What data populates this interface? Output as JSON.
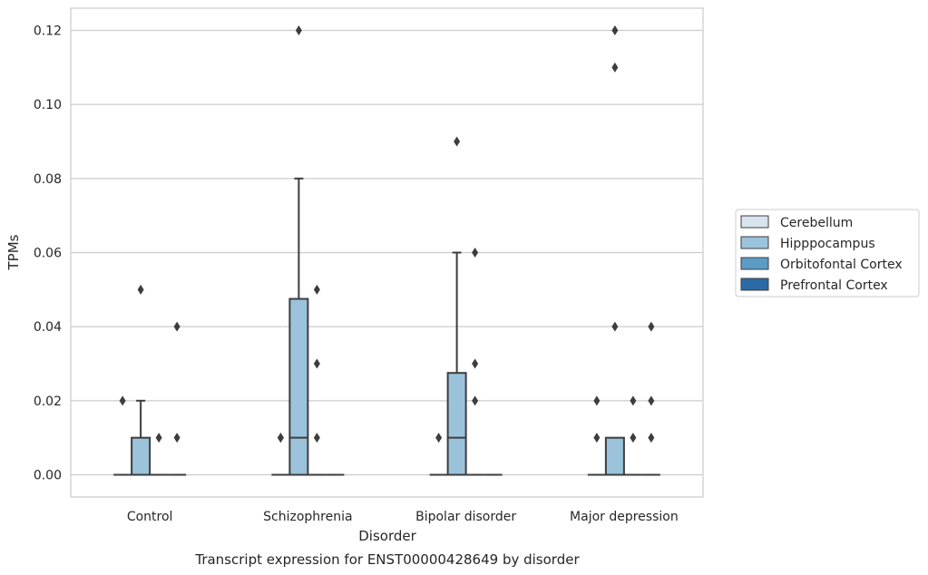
{
  "chart_data": {
    "type": "boxplot",
    "title": "",
    "caption": "Transcript expression for ENST00000428649 by disorder",
    "xlabel": "Disorder",
    "ylabel": "TPMs",
    "ylim": [
      -0.006,
      0.126
    ],
    "yticks": [
      0.0,
      0.02,
      0.04,
      0.06,
      0.08,
      0.1,
      0.12
    ],
    "ytick_labels": [
      "0.00",
      "0.02",
      "0.04",
      "0.06",
      "0.08",
      "0.10",
      "0.12"
    ],
    "grid": "horizontal",
    "legend_position": "right",
    "categories": [
      "Control",
      "Schizophrenia",
      "Bipolar disorder",
      "Major depression"
    ],
    "series": [
      {
        "name": "Cerebellum",
        "color": "#d8e3ee",
        "boxes": [
          {
            "q1": 0,
            "median": 0,
            "q3": 0,
            "whisker_low": 0,
            "whisker_high": 0,
            "outliers": [
              0.02
            ]
          },
          {
            "q1": 0,
            "median": 0,
            "q3": 0,
            "whisker_low": 0,
            "whisker_high": 0,
            "outliers": [
              0.01,
              0.01
            ]
          },
          {
            "q1": 0,
            "median": 0,
            "q3": 0,
            "whisker_low": 0,
            "whisker_high": 0,
            "outliers": [
              0.01
            ]
          },
          {
            "q1": 0,
            "median": 0,
            "q3": 0,
            "whisker_low": 0,
            "whisker_high": 0,
            "outliers": [
              0.02,
              0.01
            ]
          }
        ]
      },
      {
        "name": "Hipppocampus",
        "color": "#9bc3dc",
        "boxes": [
          {
            "q1": 0,
            "median": 0,
            "q3": 0.01,
            "whisker_low": 0,
            "whisker_high": 0.02,
            "outliers": [
              0.05
            ]
          },
          {
            "q1": 0,
            "median": 0.01,
            "q3": 0.0475,
            "whisker_low": 0,
            "whisker_high": 0.08,
            "outliers": [
              0.12
            ]
          },
          {
            "q1": 0,
            "median": 0.01,
            "q3": 0.0275,
            "whisker_low": 0,
            "whisker_high": 0.06,
            "outliers": [
              0.09
            ]
          },
          {
            "q1": 0,
            "median": 0,
            "q3": 0.01,
            "whisker_low": 0,
            "whisker_high": 0.01,
            "outliers": [
              0.12,
              0.11,
              0.04
            ]
          }
        ]
      },
      {
        "name": "Orbitofontal Cortex",
        "color": "#5b9bc5",
        "boxes": [
          {
            "q1": 0,
            "median": 0,
            "q3": 0,
            "whisker_low": 0,
            "whisker_high": 0,
            "outliers": [
              0.01
            ]
          },
          {
            "q1": 0,
            "median": 0,
            "q3": 0,
            "whisker_low": 0,
            "whisker_high": 0,
            "outliers": [
              0.05,
              0.03,
              0.01
            ]
          },
          {
            "q1": 0,
            "median": 0,
            "q3": 0,
            "whisker_low": 0,
            "whisker_high": 0,
            "outliers": [
              0.06,
              0.03,
              0.02
            ]
          },
          {
            "q1": 0,
            "median": 0,
            "q3": 0,
            "whisker_low": 0,
            "whisker_high": 0,
            "outliers": [
              0.02,
              0.01
            ]
          }
        ]
      },
      {
        "name": "Prefrontal Cortex",
        "color": "#2b6aa6",
        "boxes": [
          {
            "q1": 0,
            "median": 0,
            "q3": 0,
            "whisker_low": 0,
            "whisker_high": 0,
            "outliers": [
              0.04,
              0.01
            ]
          },
          {
            "q1": 0,
            "median": 0,
            "q3": 0,
            "whisker_low": 0,
            "whisker_high": 0,
            "outliers": []
          },
          {
            "q1": 0,
            "median": 0,
            "q3": 0,
            "whisker_low": 0,
            "whisker_high": 0,
            "outliers": []
          },
          {
            "q1": 0,
            "median": 0,
            "q3": 0,
            "whisker_low": 0,
            "whisker_high": 0,
            "outliers": [
              0.04,
              0.02,
              0.01
            ]
          }
        ]
      }
    ]
  }
}
